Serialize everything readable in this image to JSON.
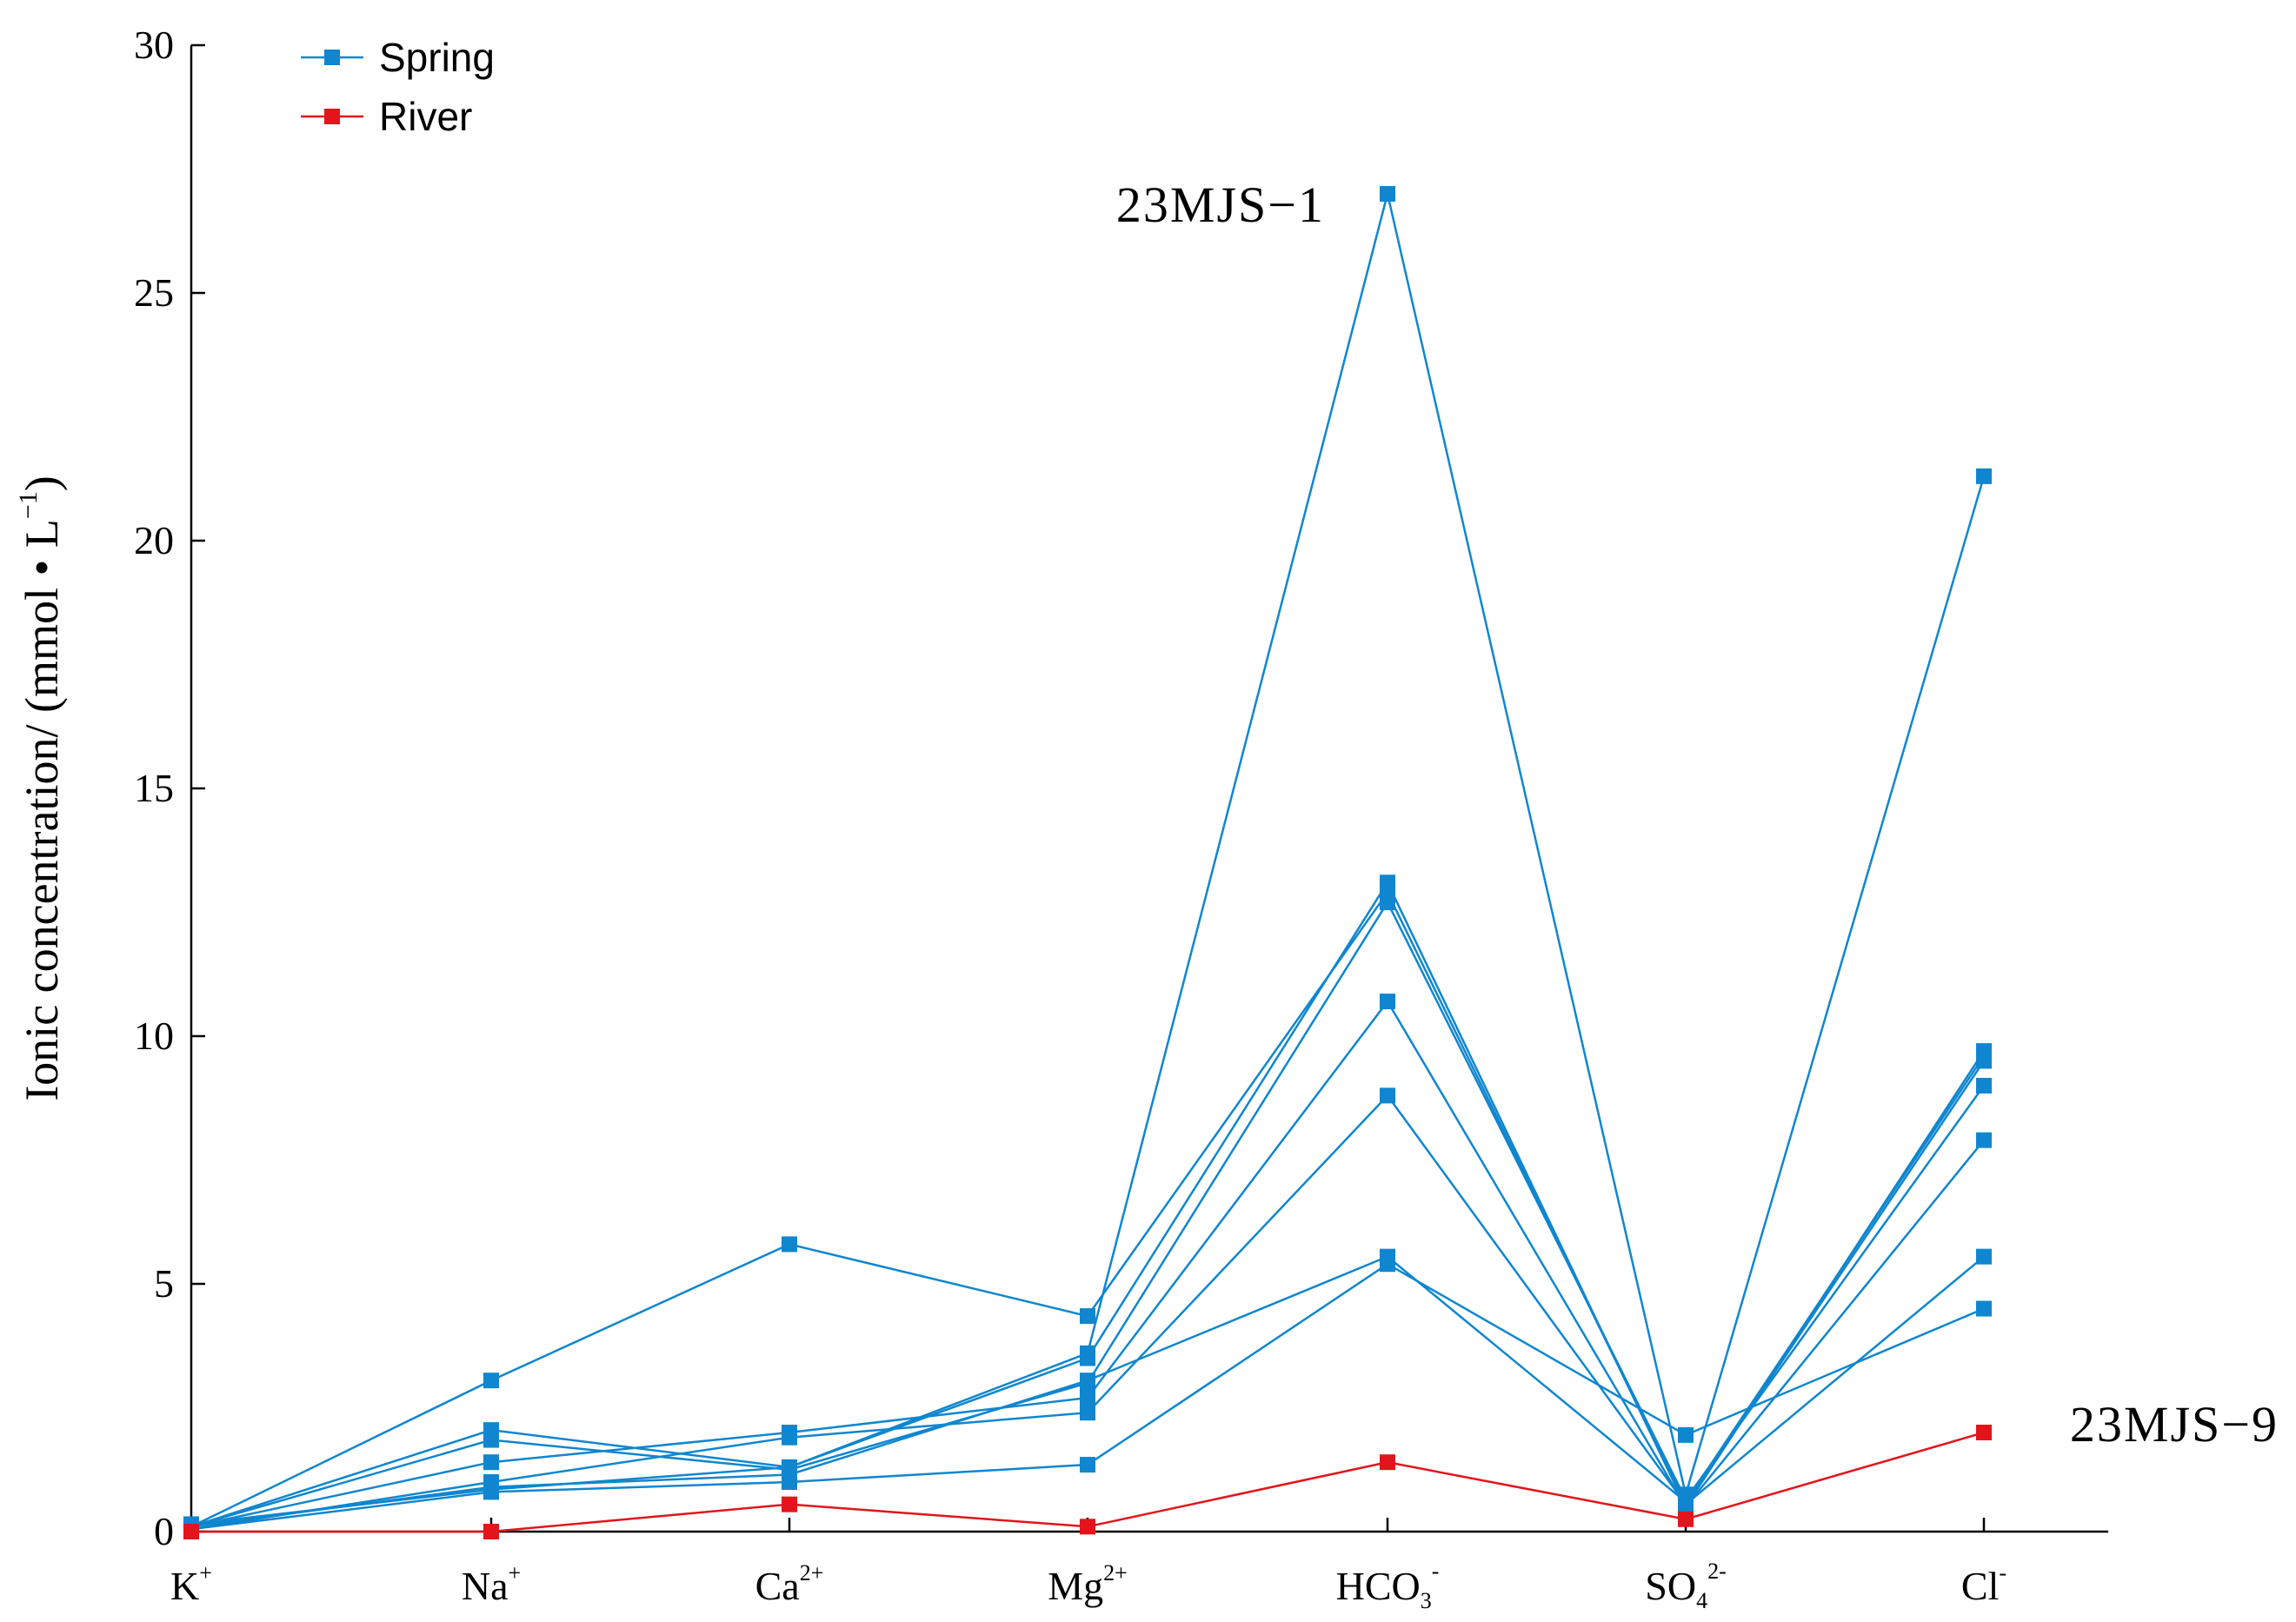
{
  "chart_data": {
    "type": "line",
    "title": "",
    "xlabel": "",
    "ylabel": "Ionic concentration/ (mmol • L",
    "ylabel_sup": "−1",
    "ylabel_end": ")",
    "ylim": [
      0,
      30
    ],
    "yticks": [
      "0",
      "5",
      "10",
      "15",
      "20",
      "25",
      "30"
    ],
    "categories": [
      {
        "base": "K",
        "sub": "",
        "sup": "+"
      },
      {
        "base": "Na",
        "sub": "",
        "sup": "+"
      },
      {
        "base": "Ca",
        "sub": "",
        "sup": "2+"
      },
      {
        "base": "Mg",
        "sub": "",
        "sup": "2+"
      },
      {
        "base": "HCO",
        "sub": "3",
        "sup": "-"
      },
      {
        "base": "SO",
        "sub": "4",
        "sup": "2-"
      },
      {
        "base": "Cl",
        "sub": "",
        "sup": "-"
      }
    ],
    "legend": {
      "placement": "top-left",
      "entries": [
        {
          "label": "Spring",
          "color": "#0f86cf"
        },
        {
          "label": "River",
          "color": "#e3141b"
        }
      ]
    },
    "colors": {
      "spring": "#0f86cf",
      "river": "#e3141b"
    },
    "series": [
      {
        "group": "spring",
        "values": [
          0.15,
          0.85,
          1.3,
          3.6,
          27.0,
          0.75,
          21.3
        ]
      },
      {
        "group": "spring",
        "values": [
          0.1,
          3.05,
          5.8,
          4.35,
          12.9,
          0.55,
          9.5
        ]
      },
      {
        "group": "spring",
        "values": [
          0.1,
          2.05,
          1.3,
          3.5,
          13.1,
          0.5,
          9.7
        ]
      },
      {
        "group": "spring",
        "values": [
          0.1,
          1.85,
          1.25,
          3.0,
          12.7,
          0.65,
          9.0
        ]
      },
      {
        "group": "spring",
        "values": [
          0.1,
          1.4,
          2.0,
          2.7,
          10.7,
          0.5,
          7.9
        ]
      },
      {
        "group": "spring",
        "values": [
          0.05,
          1.0,
          1.9,
          2.4,
          8.8,
          0.55,
          5.55
        ]
      },
      {
        "group": "spring",
        "values": [
          0.1,
          0.9,
          1.15,
          3.05,
          5.55,
          0.6,
          9.6
        ]
      },
      {
        "group": "spring",
        "values": [
          0.05,
          0.8,
          1.0,
          1.35,
          5.4,
          1.95,
          4.5
        ]
      },
      {
        "group": "river",
        "values": [
          0.0,
          0.0,
          0.55,
          0.1,
          1.4,
          0.25,
          2.0
        ]
      }
    ],
    "annotations": [
      {
        "text": "23MJS−1",
        "category_index": 4,
        "value": 27.0
      },
      {
        "text": "23MJS−9",
        "category_index": 6,
        "value": 2.0
      }
    ]
  }
}
